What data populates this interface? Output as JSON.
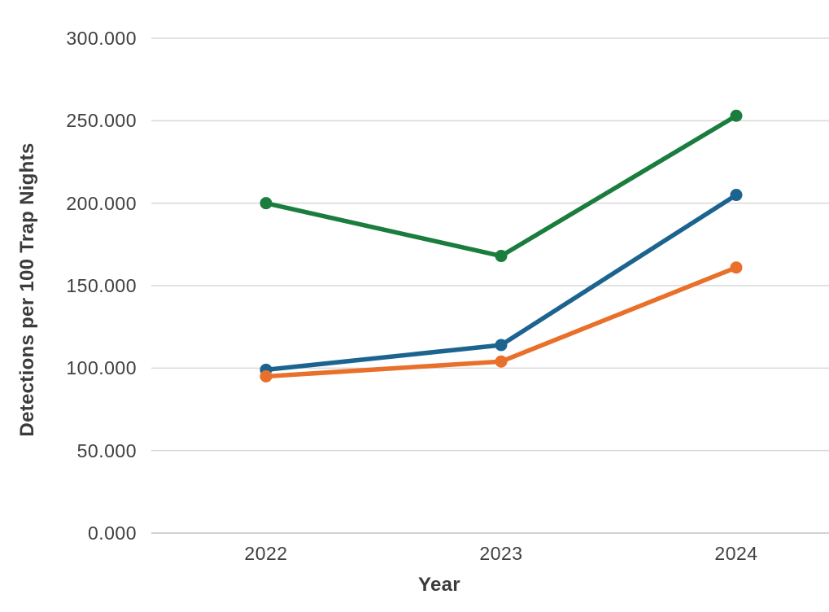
{
  "chart_data": {
    "type": "line",
    "title": "",
    "xlabel": "Year",
    "ylabel": "Detections per 100 Trap Nights",
    "categories": [
      "2022",
      "2023",
      "2024"
    ],
    "series": [
      {
        "name": "green",
        "color": "#1a7d3e",
        "values": [
          200,
          168,
          253
        ]
      },
      {
        "name": "blue",
        "color": "#1c648f",
        "values": [
          99,
          114,
          205
        ]
      },
      {
        "name": "orange",
        "color": "#e8702a",
        "values": [
          95,
          104,
          161
        ]
      }
    ],
    "ylim": [
      0,
      300
    ],
    "ytick_values": [
      300,
      250,
      200,
      150,
      100,
      50,
      0
    ],
    "ytick_labels": [
      "300.000",
      "250.000",
      "200.000",
      "150.000",
      "100.000",
      "50.000",
      "0.000"
    ],
    "grid": true,
    "legend": "none",
    "gridline_color": "#d9d9d9",
    "baseline_color": "#c4c4c4",
    "text_color": "#404040",
    "background": "#ffffff",
    "marker": "circle"
  }
}
